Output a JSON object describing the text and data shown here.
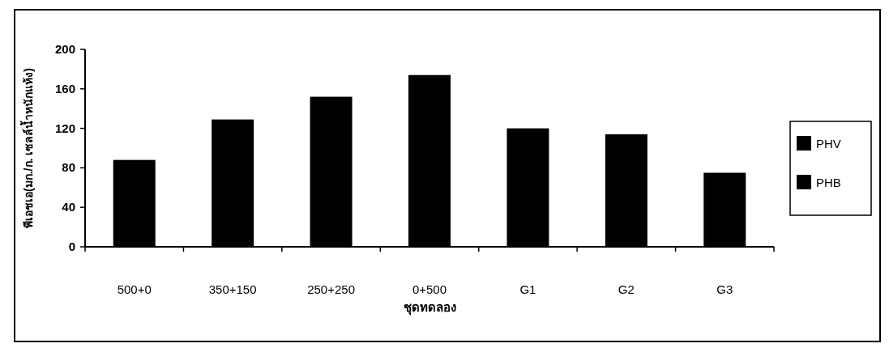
{
  "chart_data": {
    "type": "bar",
    "xlabel": "ชุดทดลอง",
    "ylabel": "พีเอชเอ(มก./ก. เซลล์น้ำหนักแห้ง)",
    "categories": [
      "500+0",
      "350+150",
      "250+250",
      "0+500",
      "G1",
      "G2",
      "G3"
    ],
    "series": [
      {
        "name": "PHV",
        "color": "#000000",
        "values": [
          null,
          null,
          null,
          null,
          null,
          null,
          null
        ]
      },
      {
        "name": "PHB",
        "color": "#000000",
        "values": [
          88,
          129,
          152,
          174,
          120,
          114,
          75
        ]
      }
    ],
    "ylim": [
      0,
      200
    ],
    "yticks": [
      0,
      40,
      80,
      120,
      160,
      200
    ],
    "grid": false,
    "legend": "right"
  }
}
